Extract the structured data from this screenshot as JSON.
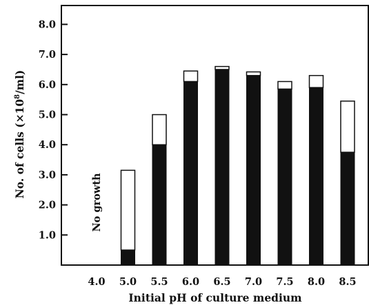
{
  "chart_data": {
    "type": "bar",
    "stacked": true,
    "categories": [
      "4.0",
      "5.0",
      "5.5",
      "6.0",
      "6.5",
      "7.0",
      "7.5",
      "8.0",
      "8.5"
    ],
    "series": [
      {
        "color": "#111111",
        "values": [
          0,
          0.5,
          4.0,
          6.1,
          6.5,
          6.3,
          5.85,
          5.9,
          3.75
        ]
      },
      {
        "color": "#ffffff",
        "values": [
          0,
          2.65,
          1.0,
          0.35,
          0.1,
          0.12,
          0.25,
          0.4,
          1.7
        ]
      }
    ],
    "xlabel": "Initial pH of culture medium",
    "ylabel_parts": {
      "pre": "No. of cells (×10",
      "sup": "8",
      "post": "/ml)"
    },
    "ylim": [
      0,
      8.5
    ],
    "yticks": [
      1.0,
      2.0,
      3.0,
      4.0,
      5.0,
      6.0,
      7.0,
      8.0
    ],
    "ytick_labels": [
      "1.0",
      "2.0",
      "3.0",
      "4.0",
      "5.0",
      "6.0",
      "7.0",
      "8.0"
    ],
    "annotation": {
      "text": "No growth",
      "category": "4.0"
    },
    "grid": false,
    "legend": "none"
  }
}
